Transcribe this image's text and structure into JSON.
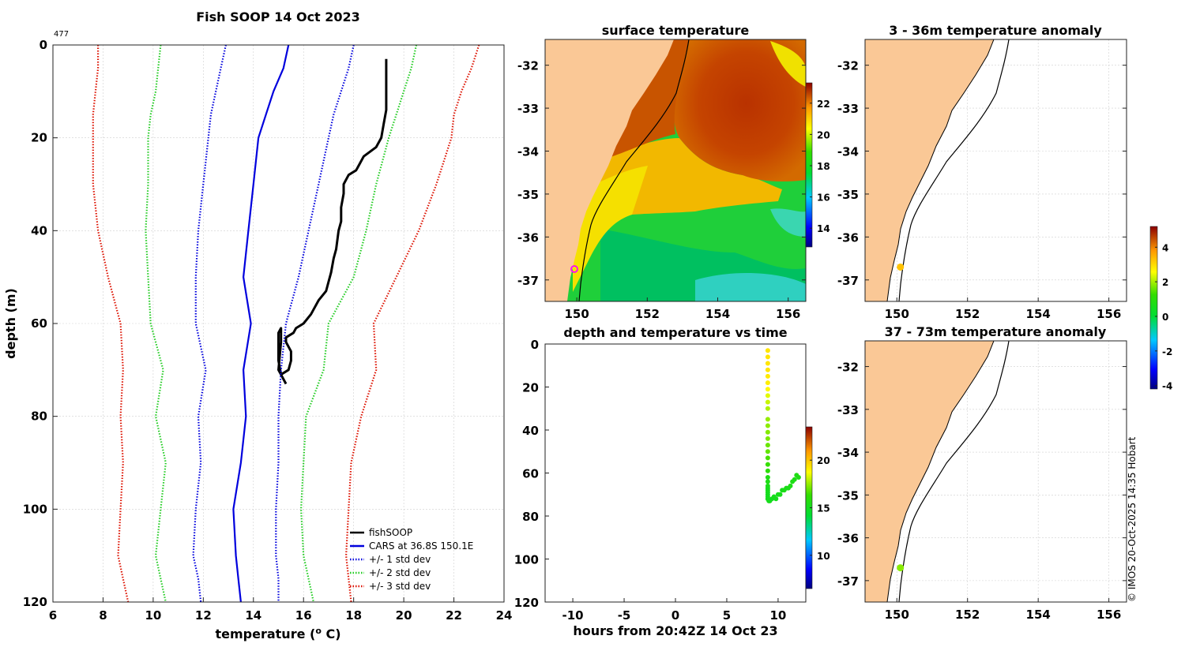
{
  "figure": {
    "credit": "© IMOS 20-Oct-2025 14:35 Hobart"
  },
  "colors": {
    "fish": "#000000",
    "cars": "#0000dd",
    "std1": "#0000dd",
    "std2": "#22cc22",
    "std3": "#dd1100",
    "land": "#fac896",
    "grid": "#cfcfcf",
    "drop": "#e2a22a"
  },
  "chart_data": [
    {
      "id": "profile",
      "type": "line",
      "title": "Fish SOOP 14 Oct 2023",
      "annotation": "477",
      "xlabel": "temperature (",
      "xlabel_sup": "o",
      "xlabel_tail": " C)",
      "ylabel": "depth (m)",
      "xlim": [
        6,
        24
      ],
      "ylim": [
        0,
        120
      ],
      "xticks": [
        "6",
        "8",
        "10",
        "12",
        "14",
        "16",
        "18",
        "20",
        "22",
        "24"
      ],
      "yticks": [
        "0",
        "20",
        "40",
        "60",
        "80",
        "100",
        "120"
      ],
      "legend": [
        "fishSOOP",
        "CARS at 36.8S 150.1E",
        "+/- 1 std dev",
        "+/- 2 std dev",
        "+/- 3 std dev"
      ],
      "legend_position": "bottom-right",
      "series": [
        {
          "name": "fishSOOP",
          "style": "solid",
          "color_key": "fish",
          "temperature": [
            19.3,
            19.3,
            19.3,
            19.3,
            19.2,
            19.1,
            18.9,
            18.4,
            18.2,
            18.1,
            17.8,
            17.6,
            17.6,
            17.5,
            17.5,
            17.4,
            17.3,
            17.2,
            17.1,
            17.0,
            16.9,
            16.6,
            16.4,
            16.3,
            16.0,
            15.7,
            15.6,
            15.3,
            15.3,
            15.5,
            15.5,
            15.4,
            15.1,
            15.0,
            15.0,
            15.0,
            15.1,
            15.1,
            15.0,
            15.3
          ],
          "depth": [
            3,
            6,
            10,
            14,
            17,
            20,
            22,
            24,
            26,
            27,
            28,
            30,
            32,
            35,
            38,
            40,
            44,
            46,
            49,
            51,
            53,
            55,
            57,
            58,
            60,
            61,
            62,
            63,
            64,
            66,
            68,
            70,
            71,
            68,
            65,
            62,
            61,
            64,
            70,
            73
          ]
        },
        {
          "name": "CARS",
          "style": "solid",
          "color_key": "cars",
          "temperature": [
            15.4,
            15.2,
            14.8,
            14.5,
            14.2,
            14.0,
            13.8,
            13.6,
            13.9,
            13.6,
            13.7,
            13.5,
            13.2,
            13.3,
            13.4,
            13.5
          ],
          "depth": [
            0,
            5,
            10,
            15,
            20,
            30,
            40,
            50,
            60,
            70,
            80,
            90,
            100,
            110,
            115,
            120
          ]
        },
        {
          "name": "+1 std",
          "style": "dotted",
          "color_key": "std1",
          "temperature": [
            18.0,
            17.8,
            17.5,
            17.2,
            17.0,
            16.6,
            16.2,
            15.8,
            15.3,
            15.1,
            15.0,
            15.0,
            14.9,
            14.9,
            15.0,
            15.0
          ],
          "depth": [
            0,
            5,
            10,
            15,
            20,
            30,
            40,
            50,
            60,
            70,
            80,
            90,
            100,
            110,
            115,
            120
          ]
        },
        {
          "name": "-1 std",
          "style": "dotted",
          "color_key": "std1",
          "temperature": [
            12.9,
            12.7,
            12.5,
            12.3,
            12.2,
            12.0,
            11.8,
            11.7,
            11.7,
            12.1,
            11.8,
            11.9,
            11.7,
            11.6,
            11.8,
            11.9
          ],
          "depth": [
            0,
            5,
            10,
            15,
            20,
            30,
            40,
            50,
            60,
            70,
            80,
            90,
            100,
            110,
            115,
            120
          ]
        },
        {
          "name": "+2 std",
          "style": "dotted",
          "color_key": "std2",
          "temperature": [
            20.5,
            20.3,
            20.0,
            19.7,
            19.4,
            18.9,
            18.5,
            18.0,
            17.0,
            16.8,
            16.1,
            16.0,
            15.9,
            16.0,
            16.2,
            16.4
          ],
          "depth": [
            0,
            5,
            10,
            15,
            20,
            30,
            40,
            50,
            60,
            70,
            80,
            90,
            100,
            110,
            115,
            120
          ]
        },
        {
          "name": "-2 std",
          "style": "dotted",
          "color_key": "std2",
          "temperature": [
            10.3,
            10.2,
            10.1,
            9.9,
            9.8,
            9.8,
            9.7,
            9.8,
            9.9,
            10.4,
            10.1,
            10.5,
            10.3,
            10.1,
            10.3,
            10.5
          ],
          "depth": [
            0,
            5,
            10,
            15,
            20,
            30,
            40,
            50,
            60,
            70,
            80,
            90,
            100,
            110,
            115,
            120
          ]
        },
        {
          "name": "+3 std",
          "style": "dotted",
          "color_key": "std3",
          "temperature": [
            23.0,
            22.7,
            22.3,
            22.0,
            21.9,
            21.3,
            20.6,
            19.7,
            18.8,
            18.9,
            18.3,
            17.9,
            17.8,
            17.7,
            17.8,
            17.9
          ],
          "depth": [
            0,
            5,
            10,
            15,
            20,
            30,
            40,
            50,
            60,
            70,
            80,
            90,
            100,
            110,
            115,
            120
          ]
        },
        {
          "name": "-3 std",
          "style": "dotted",
          "color_key": "std3",
          "temperature": [
            7.8,
            7.8,
            7.7,
            7.6,
            7.6,
            7.6,
            7.8,
            8.2,
            8.7,
            8.8,
            8.7,
            8.8,
            8.7,
            8.6,
            8.8,
            9.0
          ],
          "depth": [
            0,
            5,
            10,
            15,
            20,
            30,
            40,
            50,
            60,
            70,
            80,
            90,
            100,
            110,
            115,
            120
          ]
        }
      ]
    },
    {
      "id": "sst",
      "type": "heatmap",
      "title": "surface temperature",
      "xlim": [
        149.1,
        156.5
      ],
      "ylim": [
        -37.5,
        -31.4
      ],
      "xticks": [
        "150",
        "152",
        "154",
        "156"
      ],
      "yticks": [
        "-32",
        "-33",
        "-34",
        "-35",
        "-36",
        "-37"
      ],
      "colorbar": {
        "range": [
          12.8,
          23.3
        ],
        "ticks": [
          "22",
          "20",
          "18",
          "16",
          "14"
        ],
        "tick_values": [
          22,
          20,
          18,
          16,
          14
        ]
      }
    },
    {
      "id": "anom1",
      "type": "scatter",
      "title": "3 - 36m temperature anomaly",
      "xlim": [
        149.1,
        156.5
      ],
      "ylim": [
        -37.5,
        -31.4
      ],
      "xticks": [
        "150",
        "152",
        "154",
        "156"
      ],
      "yticks": [
        "-32",
        "-33",
        "-34",
        "-35",
        "-36",
        "-37"
      ],
      "points": [
        {
          "lon": 150.1,
          "lat": -36.7,
          "anomaly": 3.3
        }
      ]
    },
    {
      "id": "anom2",
      "type": "scatter",
      "title": "37 - 73m temperature anomaly",
      "xlim": [
        149.1,
        156.5
      ],
      "ylim": [
        -37.5,
        -31.4
      ],
      "xticks": [
        "150",
        "152",
        "154",
        "156"
      ],
      "yticks": [
        "-32",
        "-33",
        "-34",
        "-35",
        "-36",
        "-37"
      ],
      "points": [
        {
          "lon": 150.1,
          "lat": -36.7,
          "anomaly": 1.8
        }
      ]
    },
    {
      "id": "anomaly_colorbar",
      "type": "heatmap",
      "range": [
        -4.2,
        5.2
      ],
      "ticks": [
        "4",
        "2",
        "0",
        "-2",
        "-4"
      ],
      "tick_values": [
        4,
        2,
        0,
        -2,
        -4
      ]
    },
    {
      "id": "time",
      "type": "scatter",
      "title": "depth and temperature vs time",
      "xlabel": "hours from 20:42Z 14 Oct 23",
      "xlim": [
        -12.7,
        12.7
      ],
      "ylim": [
        0,
        120
      ],
      "xticks": [
        "-10",
        "-5",
        "0",
        "5",
        "10"
      ],
      "yticks": [
        "0",
        "20",
        "40",
        "60",
        "80",
        "100",
        "120"
      ],
      "colorbar": {
        "range": [
          6.5,
          23.5
        ],
        "ticks": [
          "20",
          "15",
          "10"
        ],
        "tick_values": [
          20,
          15,
          10
        ]
      },
      "points_hours": [
        9.0,
        9.0,
        9.0,
        9.0,
        9.0,
        9.0,
        9.0,
        9.0,
        9.0,
        9.0,
        9.0,
        9.0,
        9.0,
        9.0,
        9.0,
        9.0,
        9.0,
        9.0,
        9.0,
        9.0,
        9.0,
        9.0,
        9.0,
        9.0,
        9.0,
        9.0,
        9.0,
        9.0,
        9.0,
        9.1,
        9.2,
        9.4,
        9.6,
        9.8,
        10.0,
        10.2,
        10.4,
        10.6,
        10.8,
        11.0,
        11.2,
        11.4,
        11.6,
        11.8,
        12.0
      ],
      "points_depth": [
        3,
        6,
        9,
        12,
        15,
        18,
        21,
        24,
        27,
        30,
        35,
        38,
        41,
        44,
        47,
        50,
        53,
        56,
        59,
        62,
        64,
        66,
        67,
        68,
        69,
        70,
        71,
        72,
        72,
        73,
        73,
        72,
        71,
        72,
        70,
        70,
        68,
        68,
        67,
        67,
        66,
        64,
        63,
        61,
        62
      ],
      "points_temp": [
        19.3,
        19.3,
        19.3,
        19.3,
        19.2,
        19.1,
        18.9,
        18.4,
        18.1,
        17.8,
        17.5,
        17.4,
        17.3,
        17.2,
        17.0,
        16.9,
        16.6,
        16.4,
        16.0,
        15.5,
        15.4,
        15.3,
        15.2,
        15.1,
        15.1,
        15.0,
        15.0,
        15.1,
        15.1,
        15.2,
        15.1,
        15.0,
        15.1,
        15.1,
        15.2,
        15.2,
        15.2,
        15.3,
        15.3,
        15.3,
        15.4,
        15.4,
        15.4,
        15.5,
        15.5
      ]
    }
  ]
}
